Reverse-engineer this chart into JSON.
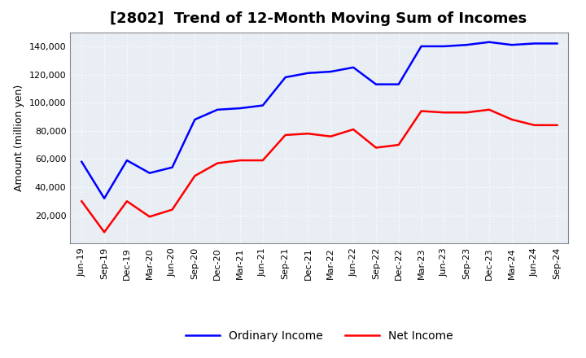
{
  "title": "[2802]  Trend of 12-Month Moving Sum of Incomes",
  "ylabel": "Amount (million yen)",
  "x_labels": [
    "Jun-19",
    "Sep-19",
    "Dec-19",
    "Mar-20",
    "Jun-20",
    "Sep-20",
    "Dec-20",
    "Mar-21",
    "Jun-21",
    "Sep-21",
    "Dec-21",
    "Mar-22",
    "Jun-22",
    "Sep-22",
    "Dec-22",
    "Mar-23",
    "Jun-23",
    "Sep-23",
    "Dec-23",
    "Mar-24",
    "Jun-24",
    "Sep-24"
  ],
  "ordinary_income": [
    58000,
    32000,
    59000,
    50000,
    54000,
    88000,
    95000,
    96000,
    98000,
    118000,
    121000,
    122000,
    125000,
    113000,
    113000,
    140000,
    140000,
    141000,
    143000,
    141000,
    142000,
    142000
  ],
  "net_income": [
    30000,
    8000,
    30000,
    19000,
    24000,
    48000,
    57000,
    59000,
    59000,
    77000,
    78000,
    76000,
    81000,
    68000,
    70000,
    94000,
    93000,
    93000,
    95000,
    88000,
    84000,
    84000
  ],
  "ordinary_color": "#0000FF",
  "net_color": "#FF0000",
  "ylim": [
    0,
    150000
  ],
  "yticks": [
    20000,
    40000,
    60000,
    80000,
    100000,
    120000,
    140000
  ],
  "bg_color": "#FFFFFF",
  "plot_bg_color": "#E8EEF4",
  "grid_color": "#FFFFFF",
  "title_fontsize": 13,
  "label_fontsize": 9,
  "tick_fontsize": 8
}
